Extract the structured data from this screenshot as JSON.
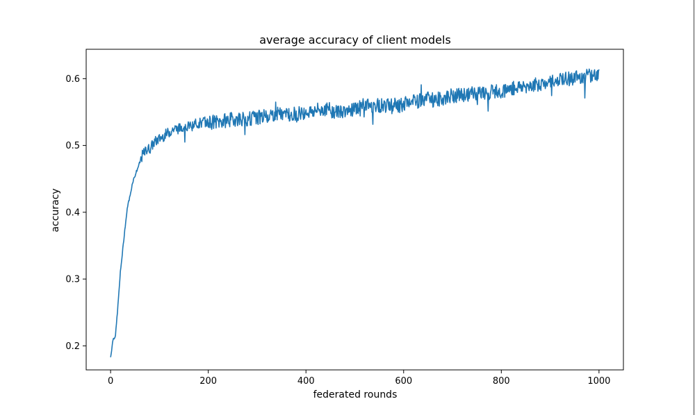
{
  "chart_data": {
    "type": "line",
    "title": "average accuracy of client models",
    "xlabel": "federated rounds",
    "ylabel": "accuracy",
    "xlim": [
      -50,
      1050
    ],
    "ylim": [
      0.164,
      0.644
    ],
    "xticks": [
      0,
      200,
      400,
      600,
      800,
      1000
    ],
    "yticks": [
      0.2,
      0.3,
      0.4,
      0.5,
      0.6
    ],
    "xtick_labels": [
      "0",
      "200",
      "400",
      "600",
      "800",
      "1000"
    ],
    "ytick_labels": [
      "0.2",
      "0.3",
      "0.4",
      "0.5",
      "0.6"
    ],
    "grid": false,
    "series": [
      {
        "color": "#1f77b4",
        "x": [
          0,
          5,
          10,
          15,
          20,
          25,
          30,
          35,
          40,
          45,
          50,
          55,
          60,
          65,
          70,
          75,
          80,
          90,
          100,
          110,
          120,
          130,
          140,
          150,
          160,
          175,
          190,
          200,
          220,
          240,
          260,
          280,
          300,
          320,
          340,
          360,
          380,
          400,
          420,
          440,
          450,
          460,
          480,
          500,
          520,
          540,
          560,
          580,
          600,
          620,
          640,
          650,
          660,
          680,
          700,
          720,
          740,
          760,
          780,
          800,
          820,
          840,
          860,
          880,
          900,
          920,
          940,
          960,
          980,
          1000
        ],
        "y": [
          0.183,
          0.21,
          0.215,
          0.26,
          0.31,
          0.345,
          0.38,
          0.41,
          0.425,
          0.445,
          0.455,
          0.465,
          0.475,
          0.485,
          0.49,
          0.495,
          0.495,
          0.505,
          0.51,
          0.515,
          0.52,
          0.525,
          0.525,
          0.53,
          0.528,
          0.532,
          0.535,
          0.535,
          0.535,
          0.538,
          0.54,
          0.54,
          0.542,
          0.545,
          0.547,
          0.547,
          0.548,
          0.55,
          0.552,
          0.555,
          0.553,
          0.55,
          0.552,
          0.555,
          0.56,
          0.56,
          0.56,
          0.56,
          0.562,
          0.565,
          0.568,
          0.575,
          0.568,
          0.57,
          0.575,
          0.575,
          0.578,
          0.578,
          0.58,
          0.582,
          0.585,
          0.588,
          0.59,
          0.592,
          0.595,
          0.598,
          0.6,
          0.602,
          0.605,
          0.606
        ]
      }
    ]
  }
}
